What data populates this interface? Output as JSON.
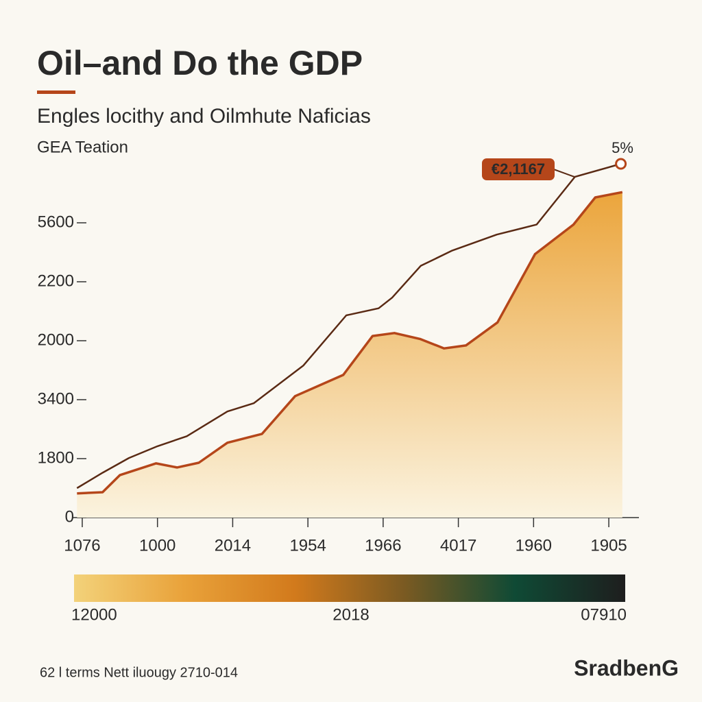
{
  "chart_data": {
    "type": "area",
    "title": "Oil–and Do the GDP",
    "subtitle": "Engles locithy and Oilmhute Naficias",
    "source": "GEA Teation",
    "xlim": [
      -0.1,
      7.2
    ],
    "xticks": [
      {
        "value": 0,
        "label": "1076"
      },
      {
        "value": 1,
        "label": "1000"
      },
      {
        "value": 2,
        "label": "2014"
      },
      {
        "value": 3,
        "label": "1954"
      },
      {
        "value": 4,
        "label": "1966"
      },
      {
        "value": 5,
        "label": "4017"
      },
      {
        "value": 6,
        "label": "1960"
      },
      {
        "value": 7,
        "label": "1905"
      }
    ],
    "ylim": [
      0,
      6
    ],
    "yticks": [
      {
        "value": 0,
        "label": "0"
      },
      {
        "value": 1,
        "label": "1800"
      },
      {
        "value": 2,
        "label": "3400"
      },
      {
        "value": 3,
        "label": "2000"
      },
      {
        "value": 4,
        "label": "2200"
      },
      {
        "value": 5,
        "label": "5600"
      }
    ],
    "series": [
      {
        "color": "#5a2a14",
        "fill": false,
        "x": [
          -0.07,
          0.27,
          0.62,
          1.0,
          1.39,
          1.93,
          2.28,
          2.94,
          3.51,
          3.94,
          4.12,
          4.5,
          4.92,
          5.51,
          6.04,
          6.55,
          7.16
        ],
        "values": [
          0.5,
          0.76,
          1.01,
          1.21,
          1.38,
          1.8,
          1.94,
          2.58,
          3.43,
          3.55,
          3.73,
          4.27,
          4.53,
          4.8,
          4.97,
          5.78,
          6.0
        ]
      },
      {
        "color": "#b5461a",
        "fill": true,
        "x": [
          -0.07,
          0.27,
          0.5,
          0.98,
          1.26,
          1.55,
          1.93,
          2.39,
          2.83,
          3.47,
          3.86,
          4.15,
          4.49,
          4.81,
          5.1,
          5.52,
          6.02,
          6.53,
          6.82,
          7.18
        ],
        "values": [
          0.41,
          0.43,
          0.72,
          0.92,
          0.85,
          0.93,
          1.27,
          1.42,
          2.06,
          2.42,
          3.08,
          3.13,
          3.03,
          2.87,
          2.92,
          3.31,
          4.47,
          4.97,
          5.43,
          5.52
        ]
      }
    ],
    "annotations": [
      "€2,1167",
      "5%"
    ],
    "colorbar": {
      "colors": [
        "#f3d27a",
        "#e9a23a",
        "#d27a1c",
        "#7a5a22",
        "#0f4a35",
        "#1e1e1e"
      ],
      "labels": [
        "12000",
        "2018",
        "07910"
      ]
    },
    "footer": "62 l terms Nett iluougy 2710-014",
    "brand": "SradbenG"
  }
}
